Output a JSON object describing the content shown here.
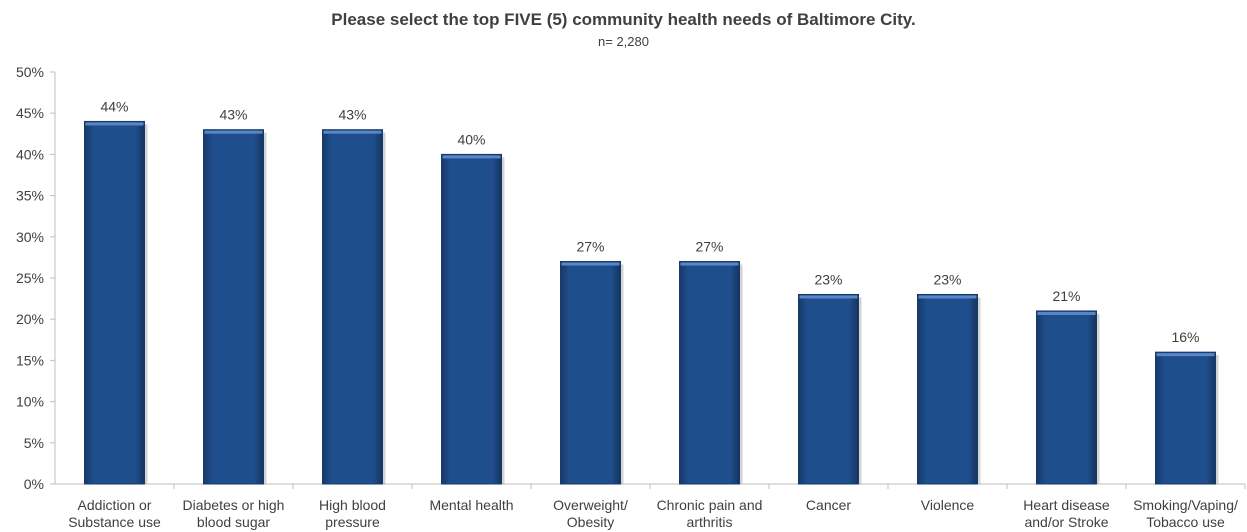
{
  "chart_data": {
    "type": "bar",
    "title": "Please select the top FIVE (5) community health needs of Baltimore City.",
    "subtitle": "n= 2,280",
    "categories": [
      [
        "Addiction or",
        "Substance use"
      ],
      [
        "Diabetes or high",
        "blood sugar"
      ],
      [
        "High blood",
        "pressure"
      ],
      [
        "Mental health"
      ],
      [
        "Overweight/",
        "Obesity"
      ],
      [
        "Chronic pain and",
        "arthritis"
      ],
      [
        "Cancer"
      ],
      [
        "Violence"
      ],
      [
        "Heart disease",
        "and/or Stroke"
      ],
      [
        "Smoking/Vaping/",
        "Tobacco use"
      ]
    ],
    "values": [
      44,
      43,
      43,
      40,
      27,
      27,
      23,
      23,
      21,
      16
    ],
    "value_labels": [
      "44%",
      "43%",
      "43%",
      "40%",
      "27%",
      "27%",
      "23%",
      "23%",
      "21%",
      "16%"
    ],
    "ylim": [
      0,
      50
    ],
    "yticks": [
      0,
      5,
      10,
      15,
      20,
      25,
      30,
      35,
      40,
      45,
      50
    ],
    "ytick_labels": [
      "0%",
      "5%",
      "10%",
      "15%",
      "20%",
      "25%",
      "30%",
      "35%",
      "40%",
      "45%",
      "50%"
    ],
    "bar_color": "#1F4E8C",
    "bar_highlight": "#5A86C5",
    "grid": false,
    "legend": "none"
  }
}
